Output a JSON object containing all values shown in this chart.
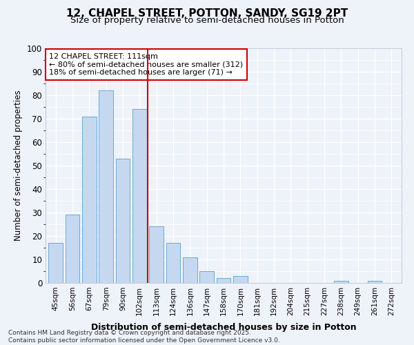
{
  "title": "12, CHAPEL STREET, POTTON, SANDY, SG19 2PT",
  "subtitle": "Size of property relative to semi-detached houses in Potton",
  "xlabel": "Distribution of semi-detached houses by size in Potton",
  "ylabel": "Number of semi-detached properties",
  "categories": [
    "45sqm",
    "56sqm",
    "67sqm",
    "79sqm",
    "90sqm",
    "102sqm",
    "113sqm",
    "124sqm",
    "136sqm",
    "147sqm",
    "158sqm",
    "170sqm",
    "181sqm",
    "192sqm",
    "204sqm",
    "215sqm",
    "227sqm",
    "238sqm",
    "249sqm",
    "261sqm",
    "272sqm"
  ],
  "values": [
    17,
    29,
    71,
    82,
    53,
    74,
    24,
    17,
    11,
    5,
    2,
    3,
    0,
    0,
    0,
    0,
    0,
    1,
    0,
    1,
    0
  ],
  "bar_color": "#c5d8f0",
  "bar_edge_color": "#6aaad4",
  "vline_color": "#cc0000",
  "annotation_title": "12 CHAPEL STREET: 111sqm",
  "annotation_line1": "← 80% of semi-detached houses are smaller (312)",
  "annotation_line2": "18% of semi-detached houses are larger (71) →",
  "annotation_box_color": "#cc0000",
  "ylim": [
    0,
    100
  ],
  "yticks": [
    0,
    10,
    20,
    30,
    40,
    50,
    60,
    70,
    80,
    90,
    100
  ],
  "footer_line1": "Contains HM Land Registry data © Crown copyright and database right 2025.",
  "footer_line2": "Contains public sector information licensed under the Open Government Licence v3.0.",
  "bg_color": "#eef2f9",
  "grid_color": "#ffffff",
  "title_fontsize": 11,
  "subtitle_fontsize": 9.5
}
